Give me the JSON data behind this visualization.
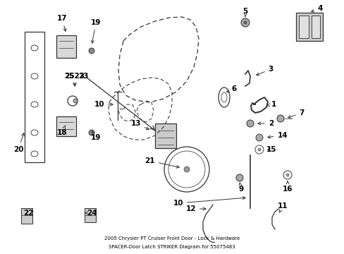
{
  "title1": "2005 Chrysler PT Cruiser Front Door - Lock & Hardware",
  "title2": "SPACER-Door Latch STRIKER Diagram for 55075483",
  "bg_color": "#ffffff",
  "lc": "#333333",
  "fig_w": 4.89,
  "fig_h": 3.6,
  "dpi": 100
}
